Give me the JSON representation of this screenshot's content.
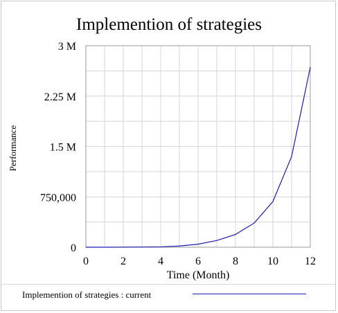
{
  "chart_data": {
    "type": "line",
    "title": "Implemention of strategies",
    "xlabel": "Time (Month)",
    "ylabel": "Performance",
    "xlim": [
      0,
      12
    ],
    "ylim": [
      0,
      3000000
    ],
    "x_ticks": [
      0,
      2,
      4,
      6,
      8,
      10,
      12
    ],
    "x_tick_labels": [
      "0",
      "2",
      "4",
      "6",
      "8",
      "10",
      "12"
    ],
    "y_ticks": [
      0,
      750000,
      1500000,
      2250000,
      3000000
    ],
    "y_tick_labels": [
      "0",
      "750,000",
      "1.5 M",
      "2.25 M",
      "3 M"
    ],
    "grid": true,
    "legend_position": "bottom",
    "series": [
      {
        "name": "Implemention of strategies : current",
        "color": "#1a1ab0",
        "x": [
          0,
          1,
          2,
          3,
          4,
          5,
          6,
          7,
          8,
          9,
          10,
          11,
          12
        ],
        "values": [
          0,
          0,
          1000,
          3000,
          6000,
          18000,
          45000,
          100000,
          190000,
          360000,
          680000,
          1350000,
          2680000
        ]
      }
    ]
  }
}
